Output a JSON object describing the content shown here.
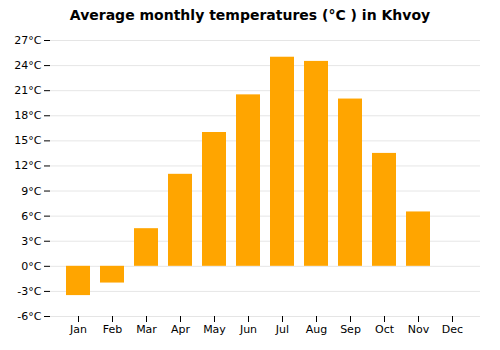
{
  "chart_data": {
    "type": "bar",
    "title": "Average monthly temperatures (°C ) in Khvoy",
    "categories": [
      "Jan",
      "Feb",
      "Mar",
      "Apr",
      "May",
      "Jun",
      "Jul",
      "Aug",
      "Sep",
      "Oct",
      "Nov",
      "Dec"
    ],
    "values": [
      -3.5,
      -2.0,
      4.5,
      11.0,
      16.0,
      20.5,
      25.0,
      24.5,
      20.0,
      13.5,
      6.5,
      0.0
    ],
    "color": "#FFA500",
    "ylim": [
      -6,
      27
    ],
    "yticks": [
      {
        "value": -6,
        "label": "-6°C"
      },
      {
        "value": -3,
        "label": "-3°C"
      },
      {
        "value": 0,
        "label": "0°C"
      },
      {
        "value": 3,
        "label": "3°C"
      },
      {
        "value": 6,
        "label": "6°C"
      },
      {
        "value": 9,
        "label": "9°C"
      },
      {
        "value": 12,
        "label": "12°C"
      },
      {
        "value": 15,
        "label": "15°C"
      },
      {
        "value": 18,
        "label": "18°C"
      },
      {
        "value": 21,
        "label": "21°C"
      },
      {
        "value": 24,
        "label": "24°C"
      },
      {
        "value": 27,
        "label": "27°C"
      }
    ],
    "grid": true
  }
}
